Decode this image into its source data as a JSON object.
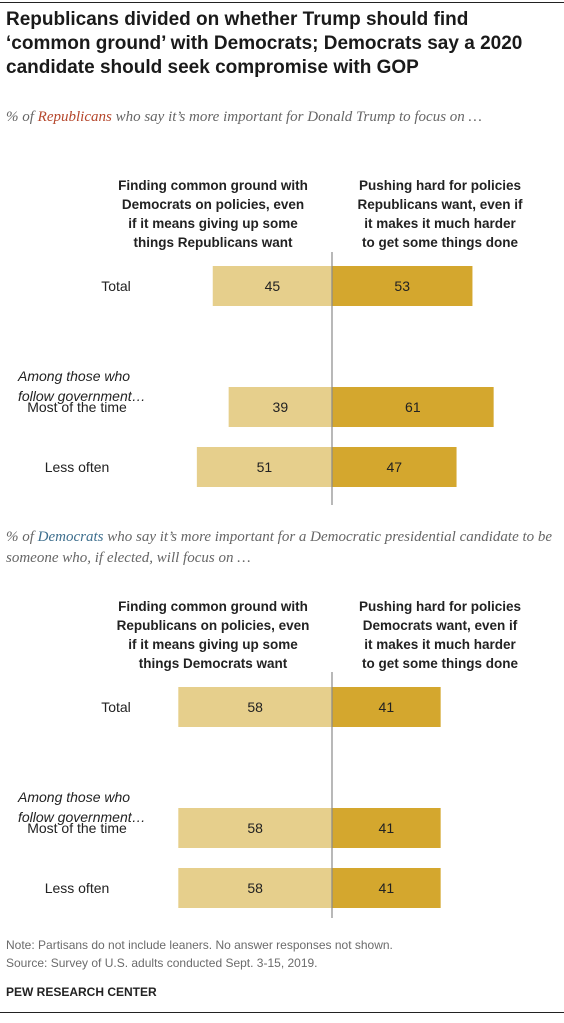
{
  "title": "Republicans divided on whether Trump should find ‘common ground’ with Democrats; Democrats say a 2020 candidate should seek compromise with GOP",
  "panels": [
    {
      "subtitle_pre": "% of ",
      "subtitle_party": "Republicans",
      "subtitle_post": " who say it’s more important for Donald Trump to focus on …",
      "left_header": [
        "Finding common ground with",
        "Democrats on policies, even",
        "if it means giving up some",
        "things Republicans want"
      ],
      "right_header": [
        "Pushing hard for policies",
        "Republicans want, even if",
        "it makes it much harder",
        "to get some things done"
      ],
      "group_label": [
        "Among those who",
        "follow government…"
      ]
    },
    {
      "subtitle_pre": "% of ",
      "subtitle_party": "Democrats",
      "subtitle_post": " who say it’s more important for a Democratic presidential candidate to be someone who, if elected, will focus on …",
      "left_header": [
        "Finding common ground with",
        "Republicans on policies, even",
        "if it means giving up some",
        "things Democrats want"
      ],
      "right_header": [
        "Pushing hard for policies",
        "Democrats want, even if",
        "it makes it much harder",
        "to get some things done"
      ],
      "group_label": [
        "Among those who",
        "follow government…"
      ]
    }
  ],
  "chart_data": [
    {
      "type": "bar",
      "orientation": "diverging-horizontal",
      "categories": [
        "Total",
        "Most of the time",
        "Less often"
      ],
      "series": [
        {
          "name": "Finding common ground with Democrats on policies, even if it means giving up some things Republicans want",
          "values": [
            45,
            39,
            51
          ],
          "color": "#e6cf8c"
        },
        {
          "name": "Pushing hard for policies Republicans want, even if it makes it much harder to get some things done",
          "values": [
            53,
            61,
            47
          ],
          "color": "#d4a72e"
        }
      ]
    },
    {
      "type": "bar",
      "orientation": "diverging-horizontal",
      "categories": [
        "Total",
        "Most of the time",
        "Less often"
      ],
      "series": [
        {
          "name": "Finding common ground with Republicans on policies, even if it means giving up some things Democrats want",
          "values": [
            58,
            58,
            58
          ],
          "color": "#e6cf8c"
        },
        {
          "name": "Pushing hard for policies Democrats want, even if it makes it much harder to get some things done",
          "values": [
            41,
            41,
            41
          ],
          "color": "#d4a72e"
        }
      ]
    }
  ],
  "note": "Note: Partisans do not include leaners. No answer responses not shown.",
  "source": "Source: Survey of U.S. adults conducted Sept. 3-15, 2019.",
  "brand": "PEW RESEARCH CENTER"
}
